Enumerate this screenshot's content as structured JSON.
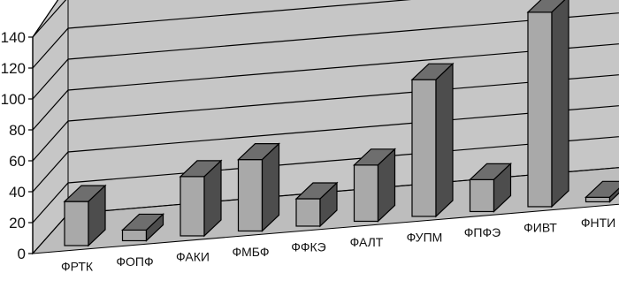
{
  "chart_data": {
    "type": "bar",
    "three_d": true,
    "grid": true,
    "categories": [
      "ФРТК",
      "ФОПФ",
      "ФАКИ",
      "ФМБФ",
      "ФФКЭ",
      "ФАЛТ",
      "ФУПМ",
      "ФПФЭ",
      "ФИВТ",
      "ФНТИ"
    ],
    "values": [
      29,
      7,
      39,
      47,
      18,
      37,
      90,
      21,
      128,
      3
    ],
    "ylim": [
      0,
      140
    ],
    "yticks": [
      0,
      20,
      40,
      60,
      80,
      100,
      120,
      140
    ],
    "ytick_labels": [
      "0",
      "20",
      "40",
      "60",
      "80",
      "100",
      "120",
      "140"
    ],
    "colors": {
      "wall": "#c6c6c6",
      "floor": "#bdbdbd",
      "grid": "#000000",
      "bar_front": "#a9a9a9",
      "bar_top": "#6e6e6e",
      "bar_side": "#4d4d4d"
    }
  }
}
